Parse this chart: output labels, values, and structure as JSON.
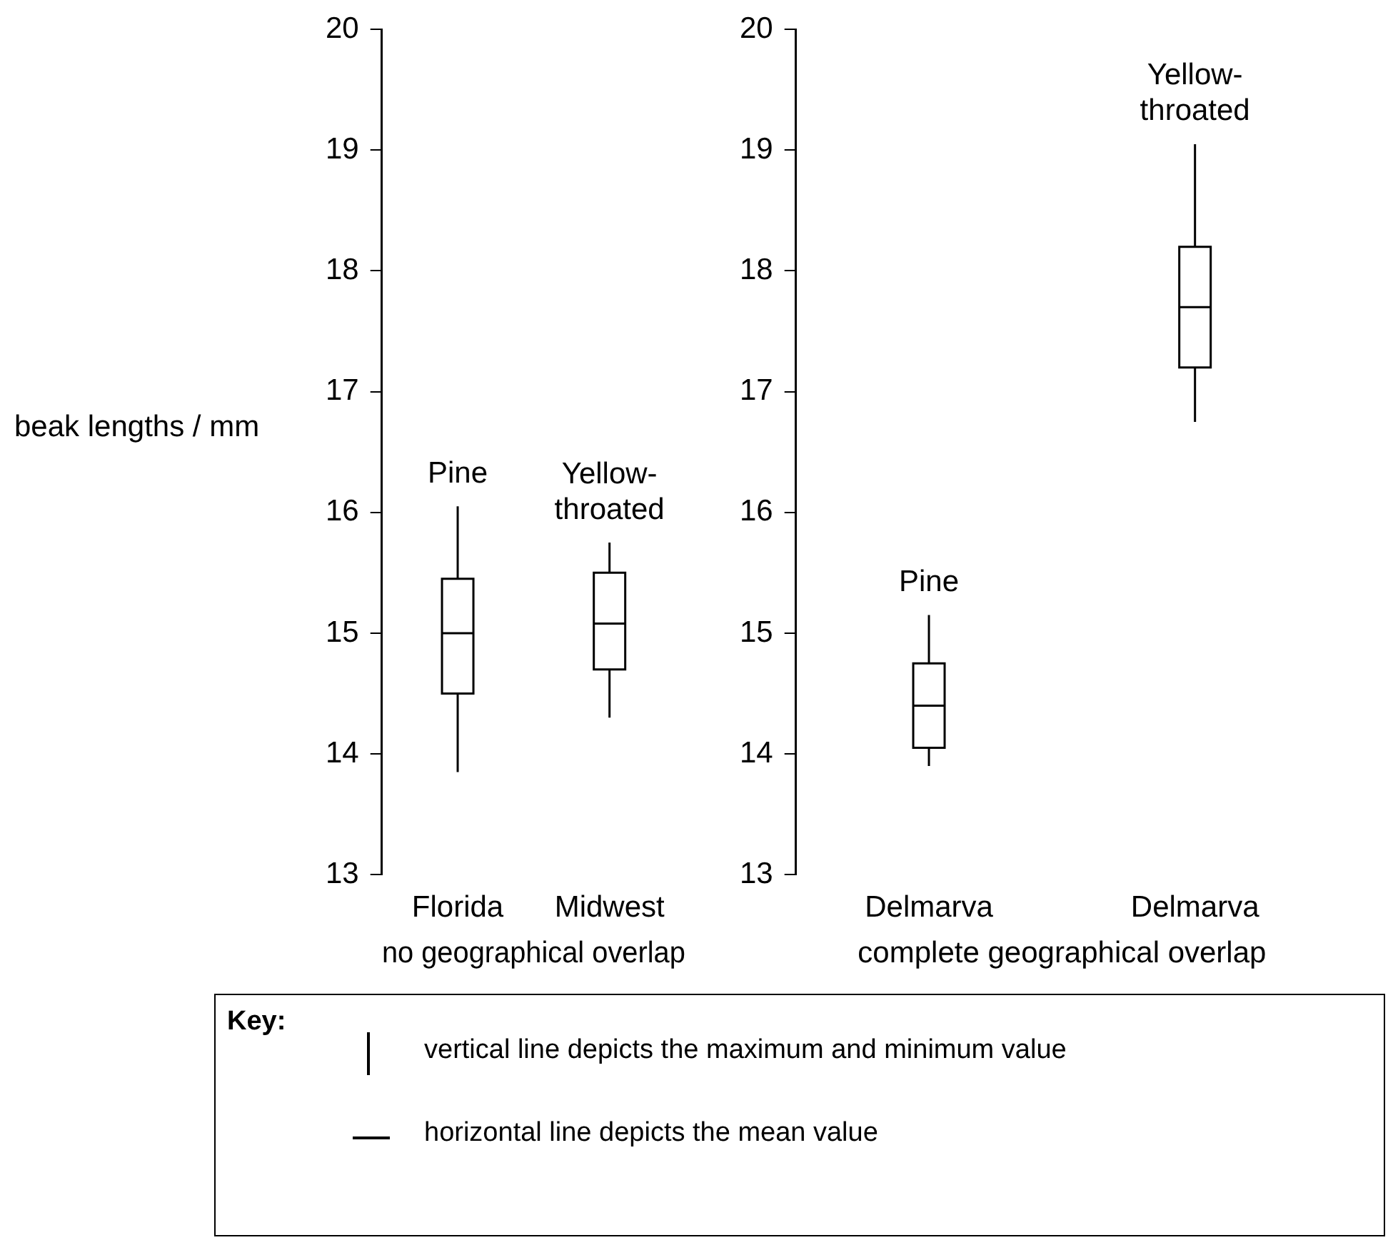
{
  "chart_data": [
    {
      "type": "box",
      "ylabel": "beak lengths / mm",
      "xlabel": "no geographical overlap",
      "categories": [
        "Florida",
        "Midwest"
      ],
      "boxes": [
        {
          "low": 13.85,
          "q1": 14.5,
          "median": 15.0,
          "q3": 15.45,
          "high": 16.05
        },
        {
          "low": 14.3,
          "q1": 14.7,
          "median": 15.08,
          "q3": 15.5,
          "high": 15.75
        }
      ],
      "ylim": [
        13,
        20
      ],
      "yticks": [
        13,
        14,
        15,
        16,
        17,
        18,
        19,
        20
      ],
      "grid": false,
      "annotations": [
        "Pine",
        "Yellow-\nthroated"
      ]
    },
    {
      "type": "box",
      "xlabel": "complete geographical overlap",
      "categories": [
        "Delmarva",
        "Delmarva"
      ],
      "boxes": [
        {
          "low": 13.9,
          "q1": 14.05,
          "median": 14.4,
          "q3": 14.75,
          "high": 15.15
        },
        {
          "low": 16.75,
          "q1": 17.2,
          "median": 17.7,
          "q3": 18.2,
          "high": 19.05
        }
      ],
      "ylim": [
        13,
        20
      ],
      "yticks": [
        13,
        14,
        15,
        16,
        17,
        18,
        19,
        20
      ],
      "grid": false,
      "annotations": [
        "Pine",
        "Yellow-\nthroated",
        "Key:",
        "vertical line depicts the maximum and minimum value",
        "horizontal line depicts the mean value"
      ]
    }
  ]
}
